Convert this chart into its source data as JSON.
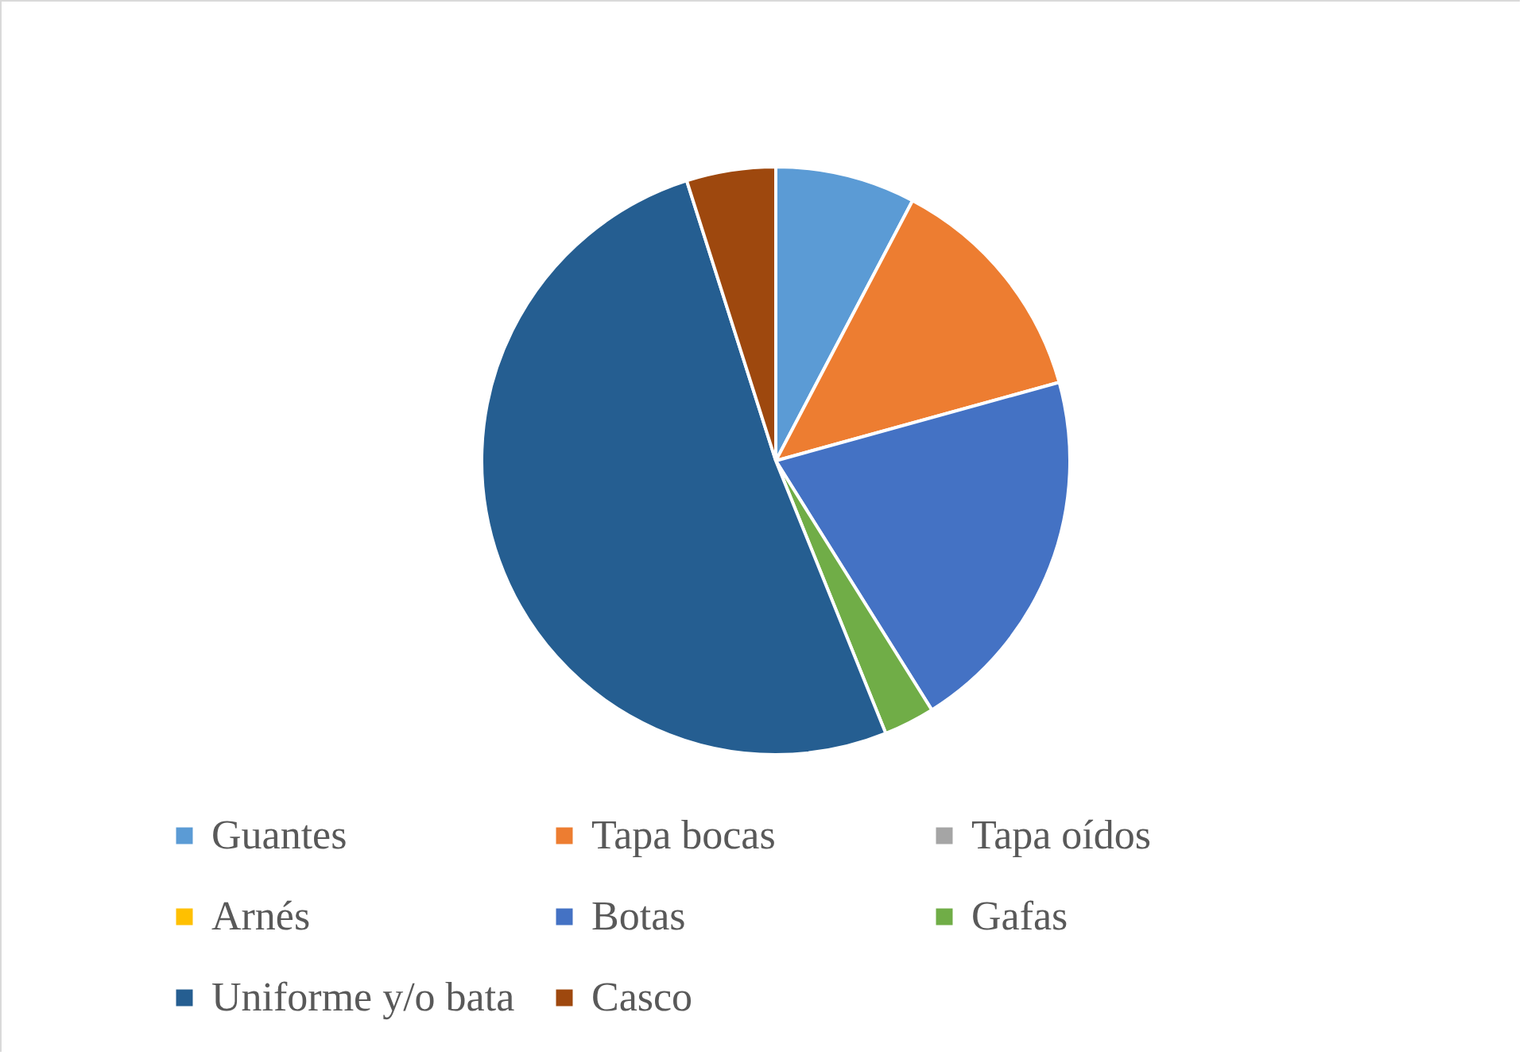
{
  "chart_data": {
    "type": "pie",
    "categories": [
      "Guantes",
      "Tapa bocas",
      "Tapa oídos",
      "Arnés",
      "Botas",
      "Gafas",
      "Uniforme y/o bata",
      "Casco"
    ],
    "values": [
      7.7,
      13.0,
      0,
      0,
      20.4,
      2.8,
      51.2,
      4.9
    ],
    "colors": [
      "#5b9bd5",
      "#ed7d31",
      "#a5a5a5",
      "#ffc000",
      "#4472c4",
      "#70ad47",
      "#255e91",
      "#9e480e"
    ],
    "legend": "bottom"
  }
}
